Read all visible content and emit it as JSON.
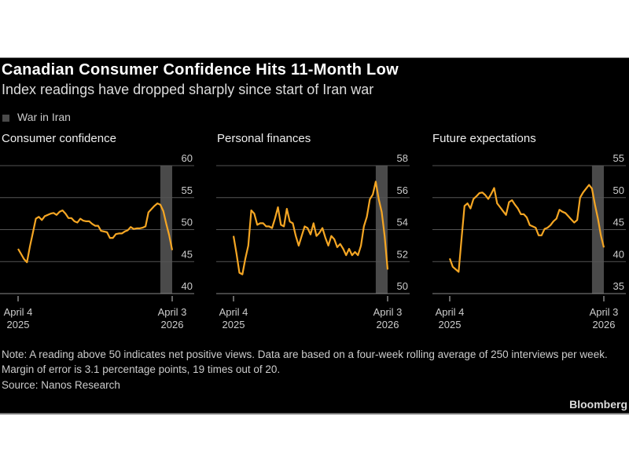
{
  "title": "Canadian Consumer Confidence Hits 11-Month Low",
  "subtitle": "Index readings have dropped sharply since start of Iran war",
  "legend": {
    "label": "War in Iran",
    "color": "#4a4a4a"
  },
  "line_color": "#f5a623",
  "note": "Note: A reading above 50 indicates net positive views. Data are based on a four-week rolling average of 250 interviews per week. Margin of error is 3.1 percentage points, 19 times out of 20.",
  "source": "Source: Nanos Research",
  "logo": "Bloomberg",
  "chart_data": [
    {
      "type": "line",
      "title": "Consumer confidence",
      "x_start": "April 4 2025",
      "x_end": "April 3 2026",
      "x_tick_labels": [
        [
          "April 4",
          "2025"
        ],
        [
          "April 3",
          "2026"
        ]
      ],
      "ylim": [
        40,
        60
      ],
      "y_ticks": [
        40,
        45,
        50,
        55,
        60
      ],
      "shaded_weeks_from_end": 4,
      "values": [
        47.0,
        46.2,
        45.4,
        44.9,
        47.4,
        49.5,
        51.7,
        52.0,
        51.5,
        52.1,
        52.3,
        52.5,
        52.6,
        52.3,
        52.8,
        53.0,
        52.5,
        51.8,
        51.8,
        51.3,
        51.1,
        51.7,
        51.4,
        51.3,
        51.3,
        50.9,
        50.6,
        50.6,
        49.8,
        49.7,
        49.6,
        48.7,
        48.7,
        49.3,
        49.4,
        49.4,
        49.7,
        49.9,
        50.4,
        50.1,
        50.2,
        50.2,
        50.3,
        50.5,
        52.7,
        53.2,
        53.7,
        54.1,
        53.9,
        52.9,
        50.9,
        49.1,
        46.8
      ]
    },
    {
      "type": "line",
      "title": "Personal finances",
      "x_start": "April 4 2025",
      "x_end": "April 3 2026",
      "x_tick_labels": [
        [
          "April 4",
          "2025"
        ],
        [
          "April 3",
          "2026"
        ]
      ],
      "ylim": [
        50,
        58
      ],
      "y_ticks": [
        50,
        52,
        54,
        56,
        58
      ],
      "shaded_weeks_from_end": 4,
      "values": [
        53.6,
        52.5,
        51.3,
        51.2,
        52.2,
        53.0,
        55.2,
        55.0,
        54.3,
        54.4,
        54.4,
        54.2,
        54.2,
        54.1,
        54.7,
        55.4,
        54.3,
        54.2,
        55.3,
        54.5,
        54.4,
        53.6,
        53.0,
        53.6,
        54.2,
        54.1,
        53.7,
        54.4,
        53.6,
        53.8,
        54.1,
        53.5,
        53.0,
        53.6,
        53.4,
        52.9,
        53.1,
        52.8,
        52.4,
        52.8,
        52.4,
        52.6,
        52.4,
        53.0,
        54.2,
        54.8,
        55.9,
        56.2,
        57.0,
        55.9,
        55.1,
        53.6,
        51.5
      ]
    },
    {
      "type": "line",
      "title": "Future expectations",
      "x_start": "April 4 2025",
      "x_end": "April 3 2026",
      "x_tick_labels": [
        [
          "April 4",
          "2025"
        ],
        [
          "April 3",
          "2026"
        ]
      ],
      "ylim": [
        35,
        55
      ],
      "y_ticks": [
        35,
        40,
        45,
        50,
        55
      ],
      "shaded_weeks_from_end": 4,
      "values": [
        40.5,
        39.2,
        38.8,
        38.4,
        43.7,
        48.7,
        49.1,
        48.3,
        49.8,
        50.2,
        50.7,
        50.8,
        50.4,
        49.8,
        50.6,
        51.5,
        49.1,
        48.5,
        47.9,
        47.3,
        49.3,
        49.6,
        48.9,
        48.3,
        47.4,
        47.4,
        46.9,
        45.7,
        45.5,
        45.3,
        44.1,
        44.1,
        45.1,
        45.3,
        45.7,
        46.3,
        46.7,
        48.1,
        47.8,
        47.6,
        47.1,
        46.6,
        46.1,
        46.5,
        50.0,
        50.8,
        51.4,
        52.0,
        51.4,
        48.9,
        46.7,
        44.1,
        42.2
      ]
    }
  ]
}
